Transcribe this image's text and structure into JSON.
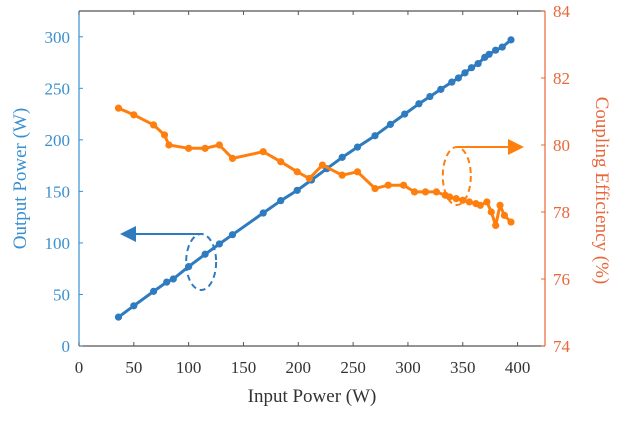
{
  "chart_data": {
    "type": "line",
    "title": "",
    "xlabel": "Input Power (W)",
    "ylabel_left": "Output Power (W)",
    "ylabel_right": "Coupling Efficiency (%)",
    "xlim": [
      0,
      425
    ],
    "ylim_left": [
      0,
      325
    ],
    "ylim_right": [
      74,
      84
    ],
    "xticks": [
      0,
      50,
      100,
      150,
      200,
      250,
      300,
      350,
      400
    ],
    "yticks_left": [
      0,
      50,
      100,
      150,
      200,
      250,
      300
    ],
    "yticks_right": [
      74,
      76,
      78,
      80,
      82,
      84
    ],
    "grid": false,
    "colors": {
      "output_power": "#2e7bc0",
      "coupling_efficiency": "#ff7f0e",
      "left_axis": "#3a8fcf",
      "right_axis": "#e8673a",
      "frame": "#555555"
    },
    "series": [
      {
        "name": "Output Power",
        "axis": "left",
        "x": [
          36,
          50,
          68,
          80,
          86,
          100,
          115,
          128,
          140,
          168,
          184,
          199,
          212,
          226,
          240,
          254,
          270,
          284,
          297,
          310,
          320,
          330,
          340,
          346,
          352,
          358,
          364,
          370,
          374,
          380,
          386,
          394
        ],
        "values": [
          28,
          39,
          53,
          62,
          65,
          77,
          89,
          99,
          108,
          129,
          141,
          151,
          161,
          172,
          183,
          193,
          204,
          215,
          225,
          235,
          242,
          249,
          256,
          260,
          265,
          270,
          274,
          280,
          283,
          287,
          290,
          297
        ]
      },
      {
        "name": "Coupling Efficiency",
        "axis": "right",
        "x": [
          36,
          50,
          68,
          78,
          82,
          100,
          115,
          128,
          140,
          168,
          184,
          199,
          210,
          222,
          240,
          254,
          270,
          282,
          296,
          306,
          316,
          326,
          334,
          338,
          344,
          350,
          356,
          362,
          366,
          372,
          376,
          380,
          384,
          388,
          394
        ],
        "values": [
          81.1,
          80.9,
          80.6,
          80.3,
          80.0,
          79.9,
          79.9,
          80.0,
          79.6,
          79.8,
          79.5,
          79.2,
          79.0,
          79.4,
          79.1,
          79.2,
          78.7,
          78.8,
          78.8,
          78.6,
          78.6,
          78.6,
          78.5,
          78.45,
          78.4,
          78.35,
          78.3,
          78.25,
          78.2,
          78.3,
          78.0,
          77.6,
          78.2,
          77.9,
          77.7
        ]
      }
    ],
    "annotations": [
      {
        "text": "",
        "type": "ellipse-arrow",
        "target": "Output Power",
        "arrow_direction": "left",
        "at_x": 105
      },
      {
        "text": "",
        "type": "ellipse-arrow",
        "target": "Coupling Efficiency",
        "arrow_direction": "right",
        "at_x": 340
      }
    ]
  }
}
